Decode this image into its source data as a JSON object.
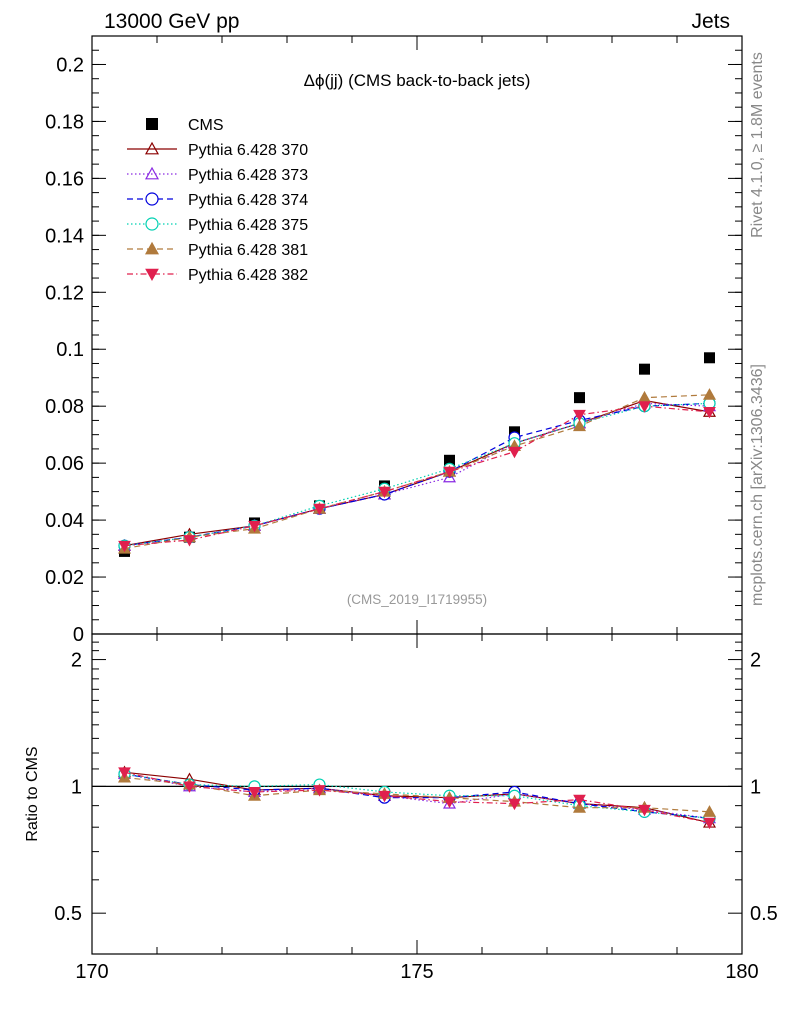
{
  "header": {
    "left_label": "13000 GeV pp",
    "right_label": "Jets"
  },
  "side_labels": {
    "rivet": "Rivet 4.1.0, ≥ 1.8M events",
    "mcplots": "mcplots.cern.ch [arXiv:1306.3436]"
  },
  "colors": {
    "CMS": "#000000",
    "Pythia 6.428 370": "#8b0000",
    "Pythia 6.428 373": "#8a2be2",
    "Pythia 6.428 374": "#0000dd",
    "Pythia 6.428 375": "#00d1b2",
    "Pythia 6.428 381": "#b07a3c",
    "Pythia 6.428 382": "#e0204e"
  },
  "chart_data": [
    {
      "type": "scatter",
      "title": "Δϕ(jj) (CMS back-to-back jets)",
      "analysis_tag": "(CMS_2019_I1719955)",
      "xlabel": "",
      "ylabel": "",
      "xlim": [
        170,
        180
      ],
      "ylim": [
        0,
        0.21
      ],
      "y_ticks": [
        "0",
        "0.02",
        "0.04",
        "0.06",
        "0.08",
        "0.1",
        "0.12",
        "0.14",
        "0.16",
        "0.18",
        "0.2"
      ],
      "legend_position": "top-left",
      "x": [
        170.5,
        171.5,
        172.5,
        173.5,
        174.5,
        175.5,
        176.5,
        177.5,
        178.5,
        179.5
      ],
      "series": [
        {
          "name": "CMS",
          "marker": "square",
          "line": "none",
          "values": [
            0.029,
            0.034,
            0.039,
            0.045,
            0.052,
            0.061,
            0.071,
            0.083,
            0.093,
            0.097
          ]
        },
        {
          "name": "Pythia 6.428 370",
          "marker": "triangle-open",
          "line": "solid",
          "values": [
            0.031,
            0.035,
            0.038,
            0.044,
            0.049,
            0.057,
            0.067,
            0.074,
            0.082,
            0.078
          ]
        },
        {
          "name": "Pythia 6.428 373",
          "marker": "triangle-open",
          "line": "dotted",
          "values": [
            0.031,
            0.034,
            0.038,
            0.044,
            0.049,
            0.055,
            0.067,
            0.074,
            0.081,
            0.08
          ]
        },
        {
          "name": "Pythia 6.428 374",
          "marker": "circle-open",
          "line": "dashed",
          "values": [
            0.031,
            0.034,
            0.038,
            0.044,
            0.049,
            0.057,
            0.069,
            0.075,
            0.08,
            0.081
          ]
        },
        {
          "name": "Pythia 6.428 375",
          "marker": "circle-open",
          "line": "dotted",
          "values": [
            0.031,
            0.034,
            0.038,
            0.045,
            0.051,
            0.058,
            0.067,
            0.074,
            0.08,
            0.081
          ]
        },
        {
          "name": "Pythia 6.428 381",
          "marker": "triangle-filled",
          "line": "dashed",
          "values": [
            0.03,
            0.034,
            0.037,
            0.044,
            0.05,
            0.057,
            0.066,
            0.073,
            0.083,
            0.084
          ]
        },
        {
          "name": "Pythia 6.428 382",
          "marker": "triangle-down-filled",
          "line": "dashdot",
          "values": [
            0.031,
            0.033,
            0.038,
            0.044,
            0.05,
            0.057,
            0.064,
            0.077,
            0.08,
            0.078
          ]
        }
      ]
    },
    {
      "type": "scatter",
      "title": "",
      "xlabel": "",
      "ylabel": "Ratio to CMS",
      "yscale": "log",
      "xlim": [
        170,
        180
      ],
      "ylim": [
        0.4,
        2.3
      ],
      "y_ticks": [
        "0.5",
        "1",
        "2"
      ],
      "x_ticks": [
        "170",
        "175",
        "180"
      ],
      "reference_line": 1,
      "x": [
        170.5,
        171.5,
        172.5,
        173.5,
        174.5,
        175.5,
        176.5,
        177.5,
        178.5,
        179.5
      ],
      "series": [
        {
          "name": "Pythia 6.428 370",
          "values": [
            1.08,
            1.04,
            0.98,
            0.99,
            0.95,
            0.94,
            0.96,
            0.91,
            0.89,
            0.82
          ]
        },
        {
          "name": "Pythia 6.428 373",
          "values": [
            1.07,
            1.0,
            0.97,
            0.99,
            0.95,
            0.91,
            0.96,
            0.91,
            0.88,
            0.84
          ]
        },
        {
          "name": "Pythia 6.428 374",
          "values": [
            1.07,
            1.01,
            0.98,
            0.99,
            0.94,
            0.94,
            0.97,
            0.91,
            0.87,
            0.84
          ]
        },
        {
          "name": "Pythia 6.428 375",
          "values": [
            1.07,
            1.01,
            1.0,
            1.01,
            0.97,
            0.95,
            0.95,
            0.9,
            0.87,
            0.84
          ]
        },
        {
          "name": "Pythia 6.428 381",
          "values": [
            1.05,
            1.01,
            0.95,
            0.98,
            0.96,
            0.94,
            0.92,
            0.89,
            0.89,
            0.87
          ]
        },
        {
          "name": "Pythia 6.428 382",
          "values": [
            1.08,
            1.0,
            0.97,
            0.98,
            0.95,
            0.92,
            0.91,
            0.93,
            0.88,
            0.82
          ]
        }
      ]
    }
  ]
}
